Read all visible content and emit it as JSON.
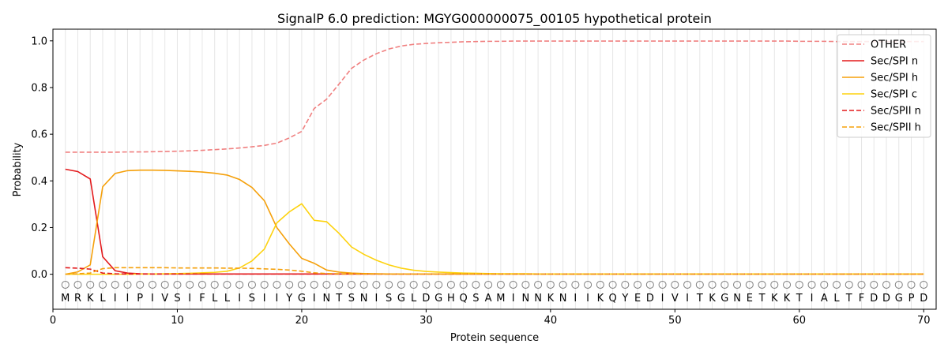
{
  "chart_data": {
    "type": "line",
    "title": "SignalP 6.0 prediction: MGYG000000075_00105 hypothetical protein",
    "xlabel": "Protein sequence",
    "ylabel": "Probability",
    "xlim": [
      0,
      71
    ],
    "ylim": [
      -0.15,
      1.05
    ],
    "xticks": [
      0,
      10,
      20,
      30,
      40,
      50,
      60,
      70
    ],
    "yticks": [
      0.0,
      0.2,
      0.4,
      0.6,
      0.8,
      1.0
    ],
    "grid": "vertical lines at each residue",
    "legend_position": "top-right",
    "sequence": [
      "M",
      "R",
      "K",
      "L",
      "I",
      "I",
      "P",
      "I",
      "V",
      "S",
      "I",
      "F",
      "L",
      "L",
      "I",
      "S",
      "I",
      "I",
      "Y",
      "G",
      "I",
      "N",
      "T",
      "S",
      "N",
      "I",
      "S",
      "G",
      "L",
      "D",
      "G",
      "H",
      "Q",
      "S",
      "A",
      "M",
      "I",
      "N",
      "N",
      "K",
      "N",
      "I",
      "I",
      "K",
      "Q",
      "Y",
      "E",
      "D",
      "I",
      "V",
      "I",
      "T",
      "K",
      "G",
      "N",
      "E",
      "T",
      "K",
      "K",
      "T",
      "I",
      "A",
      "L",
      "T",
      "F",
      "D",
      "D",
      "G",
      "P",
      "D"
    ],
    "series": [
      {
        "name": "OTHER",
        "color": "#f08080",
        "dash": true,
        "values": [
          0.523,
          0.523,
          0.523,
          0.523,
          0.523,
          0.524,
          0.524,
          0.525,
          0.526,
          0.527,
          0.529,
          0.531,
          0.534,
          0.537,
          0.541,
          0.546,
          0.552,
          0.562,
          0.584,
          0.612,
          0.71,
          0.75,
          0.815,
          0.882,
          0.918,
          0.945,
          0.965,
          0.978,
          0.985,
          0.989,
          0.992,
          0.994,
          0.996,
          0.997,
          0.998,
          0.998,
          0.999,
          0.999,
          0.999,
          0.999,
          0.999,
          0.999,
          0.999,
          0.999,
          0.999,
          0.999,
          0.999,
          0.999,
          0.999,
          0.999,
          0.999,
          0.999,
          0.999,
          0.999,
          0.999,
          0.999,
          0.999,
          0.999,
          0.999,
          0.998,
          0.998,
          0.998,
          0.997,
          0.997,
          0.997,
          0.997,
          0.997,
          0.997,
          0.997,
          0.997
        ]
      },
      {
        "name": "Sec/SPI n",
        "color": "#e31a1c",
        "dash": false,
        "values": [
          0.45,
          0.44,
          0.408,
          0.075,
          0.015,
          0.005,
          0.002,
          0.001,
          0.001,
          0.001,
          0.001,
          0.001,
          0.001,
          0.001,
          0.001,
          0.001,
          0.001,
          0.001,
          0.001,
          0.001,
          0.001,
          0.001,
          0.001,
          0.001,
          0.001,
          0.001,
          0.001,
          0.001,
          0.001,
          0.001,
          0.001,
          0.001,
          0.001,
          0.001,
          0.001,
          0.001,
          0.001,
          0.001,
          0.001,
          0.001,
          0.001,
          0.001,
          0.001,
          0.001,
          0.001,
          0.001,
          0.001,
          0.001,
          0.001,
          0.001,
          0.001,
          0.001,
          0.001,
          0.001,
          0.001,
          0.001,
          0.001,
          0.001,
          0.001,
          0.001,
          0.001,
          0.001,
          0.001,
          0.001,
          0.001,
          0.001,
          0.001,
          0.001,
          0.001,
          0.001
        ]
      },
      {
        "name": "Sec/SPI h",
        "color": "#f5a00a",
        "dash": false,
        "values": [
          0.0,
          0.01,
          0.04,
          0.375,
          0.432,
          0.444,
          0.446,
          0.446,
          0.445,
          0.443,
          0.441,
          0.438,
          0.433,
          0.425,
          0.406,
          0.372,
          0.315,
          0.2,
          0.13,
          0.068,
          0.047,
          0.018,
          0.009,
          0.005,
          0.003,
          0.002,
          0.001,
          0.001,
          0.001,
          0.001,
          0.001,
          0.001,
          0.001,
          0.001,
          0.001,
          0.001,
          0.001,
          0.001,
          0.001,
          0.001,
          0.001,
          0.001,
          0.001,
          0.001,
          0.001,
          0.001,
          0.001,
          0.001,
          0.001,
          0.001,
          0.001,
          0.001,
          0.001,
          0.001,
          0.001,
          0.001,
          0.001,
          0.001,
          0.001,
          0.001,
          0.001,
          0.001,
          0.001,
          0.001,
          0.001,
          0.001,
          0.001,
          0.001,
          0.001,
          0.001
        ]
      },
      {
        "name": "Sec/SPI c",
        "color": "#fdd20e",
        "dash": false,
        "values": [
          0.0,
          0.0,
          0.0,
          0.0,
          0.0,
          0.0,
          0.001,
          0.001,
          0.002,
          0.003,
          0.004,
          0.006,
          0.008,
          0.013,
          0.027,
          0.057,
          0.108,
          0.22,
          0.267,
          0.302,
          0.231,
          0.225,
          0.175,
          0.117,
          0.085,
          0.06,
          0.04,
          0.026,
          0.017,
          0.012,
          0.009,
          0.007,
          0.005,
          0.004,
          0.003,
          0.002,
          0.002,
          0.002,
          0.001,
          0.001,
          0.001,
          0.001,
          0.001,
          0.001,
          0.001,
          0.001,
          0.001,
          0.001,
          0.001,
          0.001,
          0.001,
          0.001,
          0.001,
          0.001,
          0.001,
          0.001,
          0.001,
          0.001,
          0.001,
          0.001,
          0.001,
          0.001,
          0.001,
          0.001,
          0.001,
          0.001,
          0.001,
          0.001,
          0.001,
          0.001
        ]
      },
      {
        "name": "Sec/SPII n",
        "color": "#e31a1c",
        "dash": true,
        "values": [
          0.028,
          0.026,
          0.022,
          0.005,
          0.002,
          0.001,
          0.001,
          0.001,
          0.001,
          0.001,
          0.001,
          0.001,
          0.001,
          0.001,
          0.001,
          0.001,
          0.001,
          0.001,
          0.001,
          0.001,
          0.001,
          0.001,
          0.001,
          0.001,
          0.001,
          0.001,
          0.001,
          0.001,
          0.001,
          0.001,
          0.001,
          0.001,
          0.001,
          0.001,
          0.001,
          0.001,
          0.001,
          0.001,
          0.001,
          0.001,
          0.001,
          0.001,
          0.001,
          0.001,
          0.001,
          0.001,
          0.001,
          0.001,
          0.001,
          0.001,
          0.001,
          0.001,
          0.001,
          0.001,
          0.001,
          0.001,
          0.001,
          0.001,
          0.001,
          0.001,
          0.001,
          0.001,
          0.001,
          0.001,
          0.001,
          0.001,
          0.001,
          0.001,
          0.001,
          0.001
        ]
      },
      {
        "name": "Sec/SPII h",
        "color": "#f5a00a",
        "dash": true,
        "values": [
          0.0,
          0.002,
          0.005,
          0.024,
          0.028,
          0.028,
          0.028,
          0.028,
          0.028,
          0.027,
          0.027,
          0.027,
          0.027,
          0.026,
          0.026,
          0.025,
          0.023,
          0.021,
          0.018,
          0.013,
          0.006,
          0.003,
          0.002,
          0.001,
          0.001,
          0.001,
          0.001,
          0.001,
          0.001,
          0.001,
          0.001,
          0.001,
          0.001,
          0.001,
          0.001,
          0.001,
          0.001,
          0.001,
          0.001,
          0.001,
          0.001,
          0.001,
          0.001,
          0.001,
          0.001,
          0.001,
          0.001,
          0.001,
          0.001,
          0.001,
          0.001,
          0.001,
          0.001,
          0.001,
          0.001,
          0.001,
          0.001,
          0.001,
          0.001,
          0.001,
          0.001,
          0.001,
          0.001,
          0.001,
          0.001,
          0.001,
          0.001,
          0.001,
          0.001,
          0.001
        ]
      }
    ]
  }
}
